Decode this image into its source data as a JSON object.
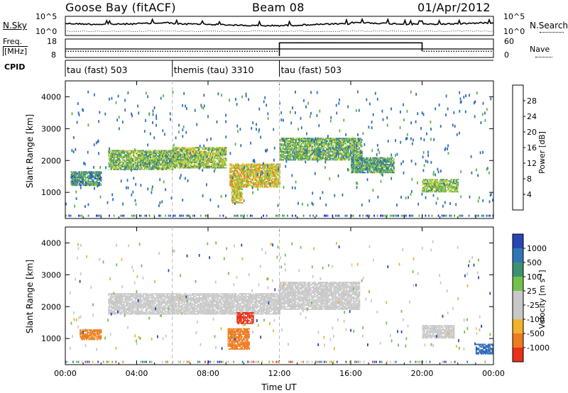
{
  "header": {
    "station": "Goose Bay (fitACF)",
    "beam": "Beam 08",
    "date": "01/Apr/2012"
  },
  "status": {
    "nsky_label": "N.Sky",
    "nsearch_label": "N.Search",
    "freq_label": "Freq.",
    "freq_unit": "[MHz]",
    "nave_label": "Nave",
    "cpid_label": "CPID",
    "left_top_ticks": [
      "10^5",
      "10^0"
    ],
    "right_top_ticks": [
      "10^5",
      "10^0"
    ],
    "left_freq_ticks": [
      "18",
      "8"
    ],
    "right_nave_ticks": [
      "60",
      "0"
    ],
    "nave_values": [
      {
        "start_h": 0,
        "end_h": 12,
        "value": 20
      },
      {
        "start_h": 12,
        "end_h": 20,
        "value": 56
      },
      {
        "start_h": 20,
        "end_h": 24,
        "value": 20
      }
    ]
  },
  "cpid_segments": [
    {
      "label": "tau (fast) 503",
      "start_h": 0
    },
    {
      "label": "themis (tau) 3310",
      "start_h": 6
    },
    {
      "label": "tau (fast) 503",
      "start_h": 12
    }
  ],
  "axes": {
    "ylabel": "Slant Range [km]",
    "yticks": [
      "1000",
      "2000",
      "3000",
      "4000"
    ],
    "xticks": [
      "00:00",
      "04:00",
      "08:00",
      "12:00",
      "16:00",
      "20:00",
      "00:00"
    ],
    "xlabel": "Time UT"
  },
  "colorbars": {
    "power": {
      "label": "Power [dB]",
      "ticks": [
        "4",
        "8",
        "12",
        "16",
        "20",
        "24",
        "28"
      ],
      "colors": [
        "#1a1aee",
        "#2c6fb6",
        "#3a8a6a",
        "#5fb04a",
        "#9ccc3b",
        "#f0d23a",
        "#f39a22",
        "#ee6a1a",
        "#e02a10"
      ]
    },
    "velocity": {
      "label": "Velocity [m s^-1]",
      "ticks": [
        "1000",
        "500",
        "100",
        "25",
        "-25",
        "-100",
        "-500",
        "-1000"
      ],
      "colors": [
        "#2a45b5",
        "#2f76b6",
        "#3e9170",
        "#71c24c",
        "#c8c8c8",
        "#c8c8c8",
        "#f2b22c",
        "#f07a1e",
        "#e8301a"
      ]
    }
  },
  "chart_data": {
    "type": "heatmap",
    "title": "Goose Bay (fitACF)  Beam 08  01/Apr/2012",
    "xlabel": "Time UT",
    "ylabel": "Slant Range [km]",
    "xlim": [
      0,
      24
    ],
    "ylim": [
      180,
      4500
    ],
    "xticks": [
      "00:00",
      "04:00",
      "08:00",
      "12:00",
      "16:00",
      "20:00",
      "00:00"
    ],
    "yticks": [
      1000,
      2000,
      3000,
      4000
    ],
    "mode_changes_h": [
      6,
      12
    ],
    "power_panel_regions": [
      {
        "t0": 2.4,
        "t1": 6.0,
        "r0": 1700,
        "r1": 2300,
        "power_db": 13
      },
      {
        "t0": 6.0,
        "t1": 9.0,
        "r0": 1750,
        "r1": 2400,
        "power_db": 15
      },
      {
        "t0": 9.2,
        "t1": 12.0,
        "r0": 1150,
        "r1": 1900,
        "power_db": 19
      },
      {
        "t0": 12.0,
        "t1": 16.6,
        "r0": 2000,
        "r1": 2700,
        "power_db": 12
      },
      {
        "t0": 16.0,
        "t1": 18.4,
        "r0": 1600,
        "r1": 2100,
        "power_db": 11
      },
      {
        "t0": 20.0,
        "t1": 22.0,
        "r0": 1000,
        "r1": 1400,
        "power_db": 14
      },
      {
        "t0": 9.3,
        "t1": 9.9,
        "r0": 650,
        "r1": 1300,
        "power_db": 18
      },
      {
        "t0": 0.3,
        "t1": 2.0,
        "r0": 1200,
        "r1": 1650,
        "power_db": 9
      }
    ],
    "velocity_panel_regions": [
      {
        "t0": 2.4,
        "t1": 12.0,
        "r0": 1750,
        "r1": 2400,
        "velocity": 0
      },
      {
        "t0": 12.0,
        "t1": 16.5,
        "r0": 1900,
        "r1": 2750,
        "velocity": 0
      },
      {
        "t0": 9.6,
        "t1": 10.5,
        "r0": 1450,
        "r1": 1800,
        "velocity": -800
      },
      {
        "t0": 9.1,
        "t1": 10.3,
        "r0": 650,
        "r1": 1300,
        "velocity": -300
      },
      {
        "t0": 0.8,
        "t1": 2.0,
        "r0": 950,
        "r1": 1250,
        "velocity": -200
      },
      {
        "t0": 20.0,
        "t1": 21.8,
        "r0": 1000,
        "r1": 1400,
        "velocity": 0
      },
      {
        "t0": 23.0,
        "t1": 24.0,
        "r0": 500,
        "r1": 800,
        "velocity": 600
      }
    ]
  }
}
